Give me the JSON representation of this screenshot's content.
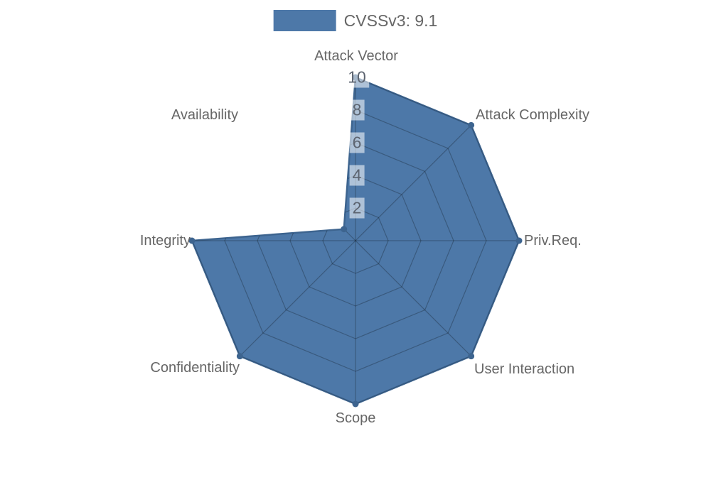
{
  "legend": {
    "label": "CVSSv3: 9.1"
  },
  "chart_data": {
    "type": "radar",
    "title": "",
    "legend_position": "top",
    "axes": [
      "Attack Vector",
      "Attack Complexity",
      "Priv.Req.",
      "User Interaction",
      "Scope",
      "Confidentiality",
      "Integrity",
      "Availability"
    ],
    "series": [
      {
        "name": "CVSSv3: 9.1",
        "values": [
          10,
          10,
          10,
          10,
          10,
          10,
          10,
          1
        ]
      }
    ],
    "scale": {
      "min": 0,
      "max": 10,
      "ticks": [
        2,
        4,
        6,
        8,
        10
      ]
    },
    "grid": "octagonal rings and spokes, visible only inside filled area",
    "colors": {
      "fill": "#4d78a8",
      "border": "#3d648f",
      "point": "#3d648f",
      "grid": "rgba(0,0,0,0.25)",
      "label_text": "#666666",
      "tick_text": "#5c6470",
      "tick_backdrop": "rgba(255,255,255,0.55)"
    }
  }
}
